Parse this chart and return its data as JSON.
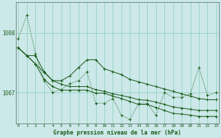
{
  "background_color": "#cce8e8",
  "grid_color": "#88ccbb",
  "line_color": "#1a5c1a",
  "title": "Graphe pression niveau de la mer (hPa)",
  "xlim": [
    -0.3,
    23.3
  ],
  "ylim": [
    1006.48,
    1008.52
  ],
  "ytick_vals": [
    1007.0,
    1008.0
  ],
  "xticks": [
    0,
    1,
    2,
    3,
    4,
    5,
    6,
    7,
    8,
    9,
    10,
    11,
    12,
    13,
    14,
    15,
    16,
    17,
    18,
    19,
    20,
    21,
    22,
    23
  ],
  "series_wiggly": [
    1007.9,
    1008.3,
    1007.65,
    1007.2,
    1007.0,
    1007.05,
    1007.15,
    1007.2,
    1007.35,
    1006.82,
    1006.82,
    1006.9,
    1006.62,
    1006.55,
    1006.82,
    1006.82,
    1006.62,
    1007.0,
    1006.92,
    1006.92,
    1006.98,
    1007.42,
    1006.95,
    1007.0
  ],
  "series_a": [
    1007.75,
    1007.62,
    1007.62,
    1007.35,
    1007.2,
    1007.2,
    1007.28,
    1007.42,
    1007.55,
    1007.55,
    1007.4,
    1007.35,
    1007.3,
    1007.22,
    1007.18,
    1007.14,
    1007.1,
    1007.06,
    1007.02,
    1006.98,
    1006.94,
    1006.9,
    1006.88,
    1006.88
  ],
  "series_b": [
    1007.75,
    1007.62,
    1007.48,
    1007.34,
    1007.2,
    1007.14,
    1007.1,
    1007.1,
    1007.1,
    1007.05,
    1007.02,
    1006.98,
    1006.95,
    1006.92,
    1006.88,
    1006.87,
    1006.84,
    1006.8,
    1006.76,
    1006.74,
    1006.72,
    1006.7,
    1006.7,
    1006.7
  ],
  "series_c": [
    1007.75,
    1007.62,
    1007.48,
    1007.22,
    1007.1,
    1007.04,
    1007.04,
    1007.04,
    1007.04,
    1006.99,
    1006.99,
    1006.94,
    1006.9,
    1006.85,
    1006.8,
    1006.8,
    1006.75,
    1006.7,
    1006.65,
    1006.64,
    1006.62,
    1006.6,
    1006.6,
    1006.6
  ]
}
